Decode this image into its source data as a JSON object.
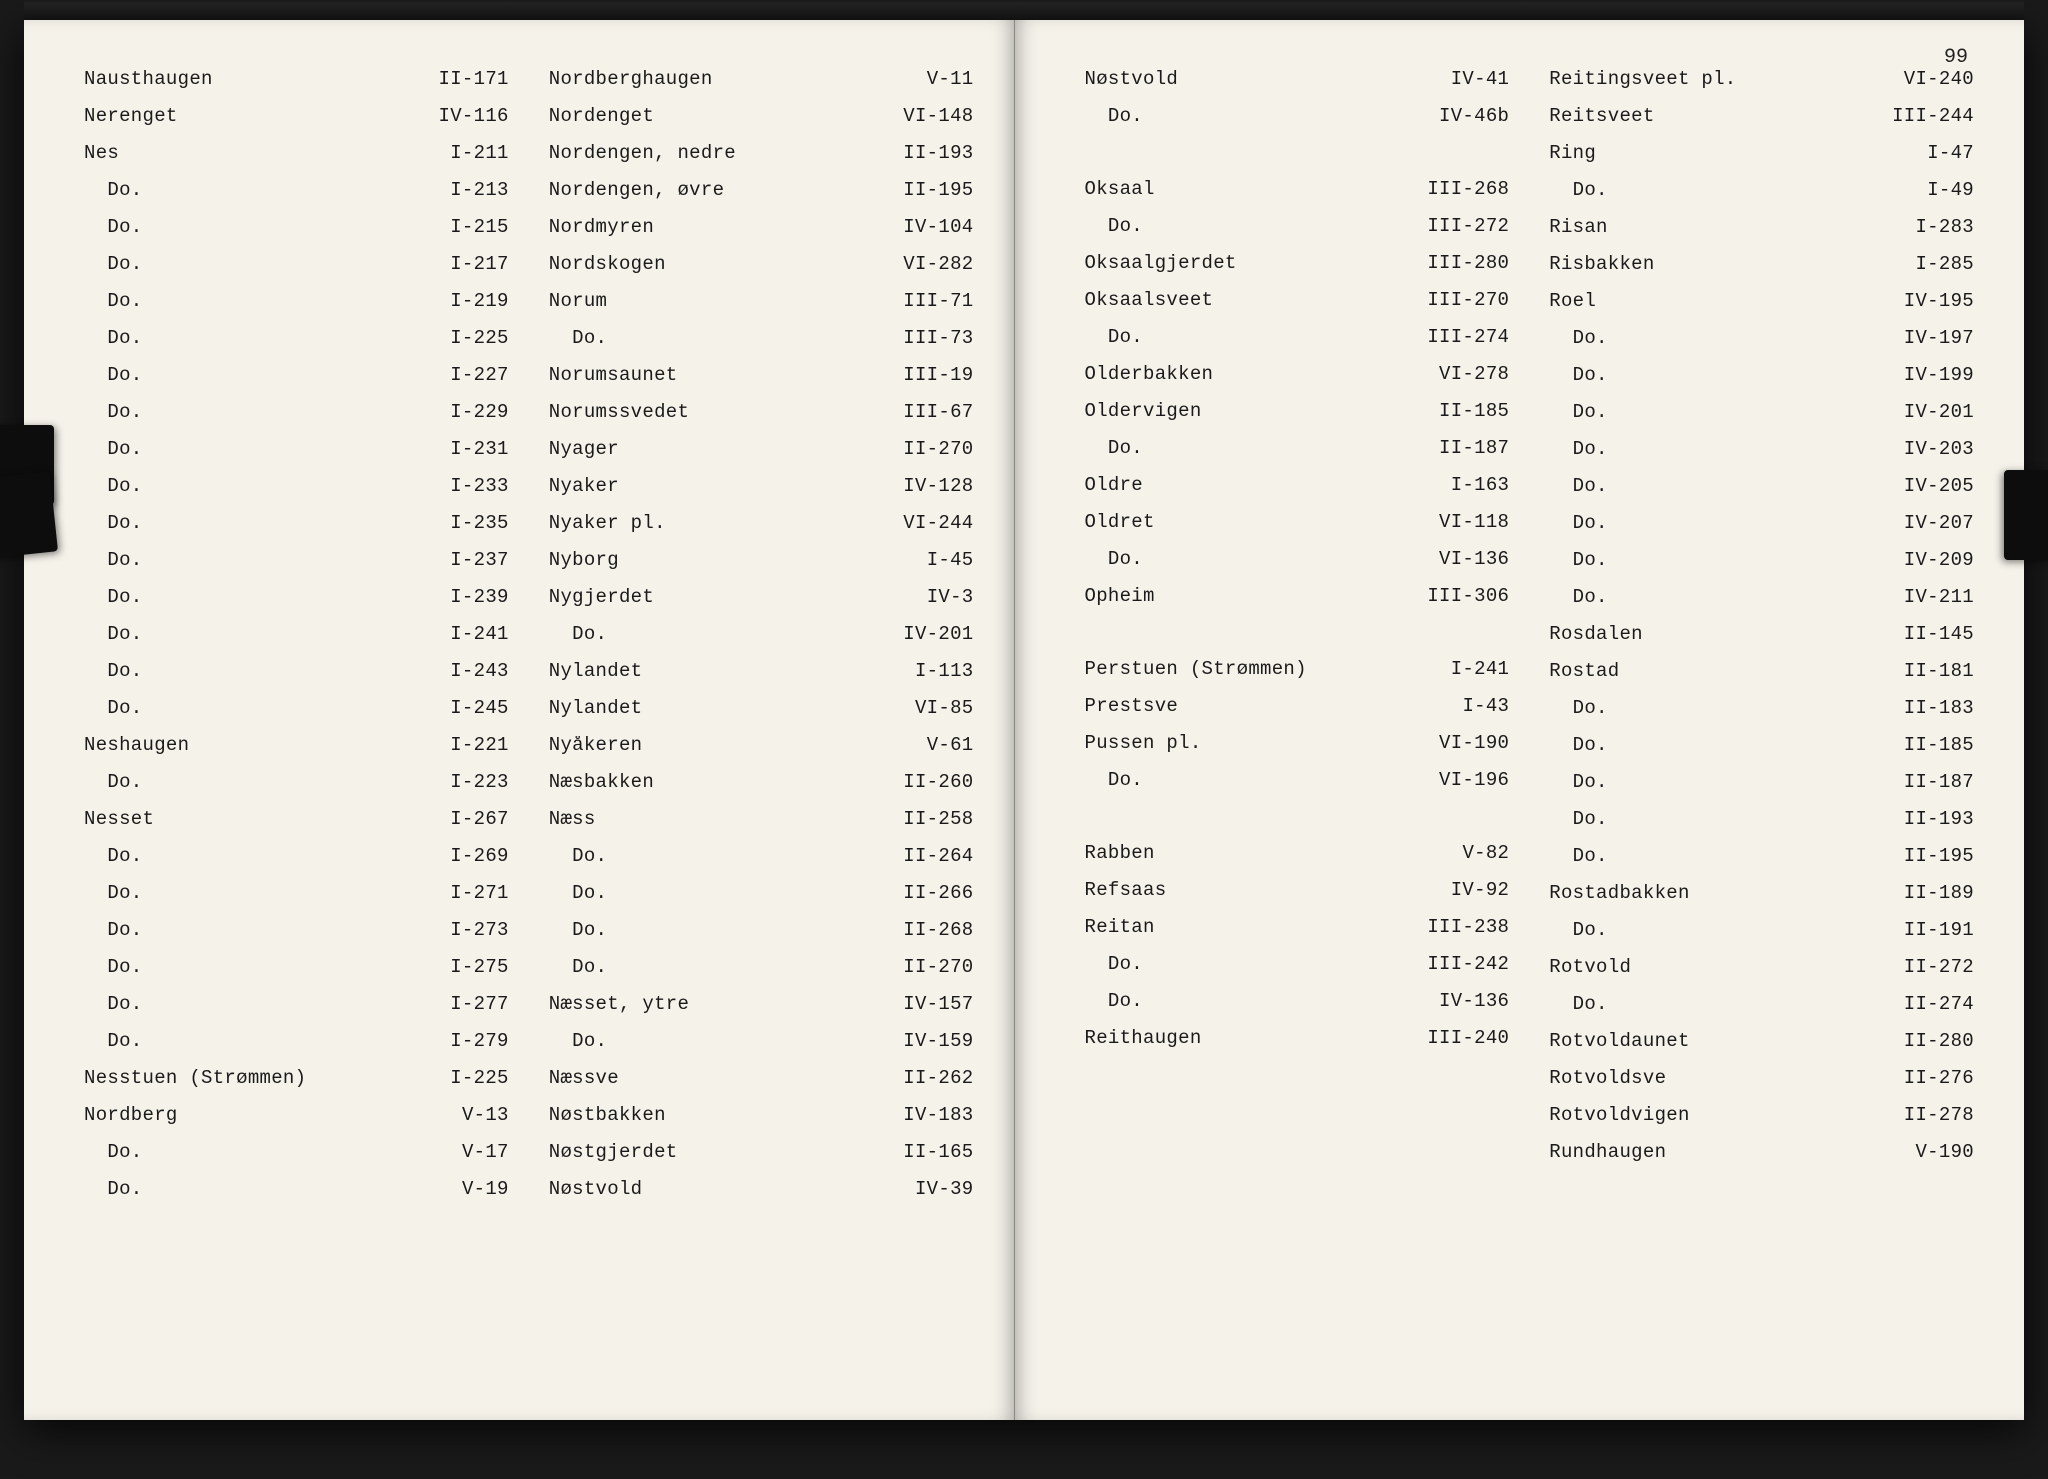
{
  "page_number": "99",
  "colors": {
    "paper_bg": "#f5f2ea",
    "text": "#1a1a1a",
    "frame_bg": "#1a1a1a"
  },
  "typography": {
    "font_family": "Courier New",
    "font_size_pt": 14
  },
  "left_page": {
    "col1": [
      {
        "name": "Nausthaugen",
        "ref": "II-171"
      },
      {
        "name": "Nerenget",
        "ref": "IV-116"
      },
      {
        "name": "Nes",
        "ref": "I-211"
      },
      {
        "name": "  Do.",
        "ref": "I-213"
      },
      {
        "name": "  Do.",
        "ref": "I-215"
      },
      {
        "name": "  Do.",
        "ref": "I-217"
      },
      {
        "name": "  Do.",
        "ref": "I-219"
      },
      {
        "name": "  Do.",
        "ref": "I-225"
      },
      {
        "name": "  Do.",
        "ref": "I-227"
      },
      {
        "name": "  Do.",
        "ref": "I-229"
      },
      {
        "name": "  Do.",
        "ref": "I-231"
      },
      {
        "name": "  Do.",
        "ref": "I-233"
      },
      {
        "name": "  Do.",
        "ref": "I-235"
      },
      {
        "name": "  Do.",
        "ref": "I-237"
      },
      {
        "name": "  Do.",
        "ref": "I-239"
      },
      {
        "name": "  Do.",
        "ref": "I-241"
      },
      {
        "name": "  Do.",
        "ref": "I-243"
      },
      {
        "name": "  Do.",
        "ref": "I-245"
      },
      {
        "name": "Neshaugen",
        "ref": "I-221"
      },
      {
        "name": "  Do.",
        "ref": "I-223"
      },
      {
        "name": "Nesset",
        "ref": "I-267"
      },
      {
        "name": "  Do.",
        "ref": "I-269"
      },
      {
        "name": "  Do.",
        "ref": "I-271"
      },
      {
        "name": "  Do.",
        "ref": "I-273"
      },
      {
        "name": "  Do.",
        "ref": "I-275"
      },
      {
        "name": "  Do.",
        "ref": "I-277"
      },
      {
        "name": "  Do.",
        "ref": "I-279"
      },
      {
        "name": "Nesstuen (Strømmen)",
        "ref": "I-225"
      },
      {
        "name": "Nordberg",
        "ref": "V-13"
      },
      {
        "name": "  Do.",
        "ref": "V-17"
      },
      {
        "name": "  Do.",
        "ref": "V-19"
      }
    ],
    "col2": [
      {
        "name": "Nordberghaugen",
        "ref": "V-11"
      },
      {
        "name": "Nordenget",
        "ref": "VI-148"
      },
      {
        "name": "Nordengen, nedre",
        "ref": "II-193"
      },
      {
        "name": "Nordengen, øvre",
        "ref": "II-195"
      },
      {
        "name": "Nordmyren",
        "ref": "IV-104"
      },
      {
        "name": "Nordskogen",
        "ref": "VI-282"
      },
      {
        "name": "Norum",
        "ref": "III-71"
      },
      {
        "name": "  Do.",
        "ref": "III-73"
      },
      {
        "name": "Norumsaunet",
        "ref": "III-19"
      },
      {
        "name": "Norumssvedet",
        "ref": "III-67"
      },
      {
        "name": "Nyager",
        "ref": "II-270"
      },
      {
        "name": "Nyaker",
        "ref": "IV-128"
      },
      {
        "name": "Nyaker pl.",
        "ref": "VI-244"
      },
      {
        "name": "Nyborg",
        "ref": "I-45"
      },
      {
        "name": "Nygjerdet",
        "ref": "IV-3"
      },
      {
        "name": "  Do.",
        "ref": "IV-201"
      },
      {
        "name": "Nylandet",
        "ref": "I-113"
      },
      {
        "name": "Nylandet",
        "ref": "VI-85"
      },
      {
        "name": "Nyåkeren",
        "ref": "V-61"
      },
      {
        "name": "Næsbakken",
        "ref": "II-260"
      },
      {
        "name": "Næss",
        "ref": "II-258"
      },
      {
        "name": "  Do.",
        "ref": "II-264"
      },
      {
        "name": "  Do.",
        "ref": "II-266"
      },
      {
        "name": "  Do.",
        "ref": "II-268"
      },
      {
        "name": "  Do.",
        "ref": "II-270"
      },
      {
        "name": "Næsset, ytre",
        "ref": "IV-157"
      },
      {
        "name": "  Do.",
        "ref": "IV-159"
      },
      {
        "name": "Næssve",
        "ref": "II-262"
      },
      {
        "name": "Nøstbakken",
        "ref": "IV-183"
      },
      {
        "name": "Nøstgjerdet",
        "ref": "II-165"
      },
      {
        "name": "Nøstvold",
        "ref": "IV-39"
      }
    ]
  },
  "right_page": {
    "col1": [
      {
        "name": "Nøstvold",
        "ref": "IV-41"
      },
      {
        "name": "  Do.",
        "ref": "IV-46b"
      },
      {
        "name": "",
        "ref": ""
      },
      {
        "name": "",
        "ref": ""
      },
      {
        "name": "Oksaal",
        "ref": "III-268"
      },
      {
        "name": "  Do.",
        "ref": "III-272"
      },
      {
        "name": "Oksaalgjerdet",
        "ref": "III-280"
      },
      {
        "name": "Oksaalsveet",
        "ref": "III-270"
      },
      {
        "name": "  Do.",
        "ref": "III-274"
      },
      {
        "name": "Olderbakken",
        "ref": "VI-278"
      },
      {
        "name": "Oldervigen",
        "ref": "II-185"
      },
      {
        "name": "  Do.",
        "ref": "II-187"
      },
      {
        "name": "Oldre",
        "ref": "I-163"
      },
      {
        "name": "Oldret",
        "ref": "VI-118"
      },
      {
        "name": "  Do.",
        "ref": "VI-136"
      },
      {
        "name": "Opheim",
        "ref": "III-306"
      },
      {
        "name": "",
        "ref": ""
      },
      {
        "name": "",
        "ref": ""
      },
      {
        "name": "Perstuen (Strømmen)",
        "ref": "I-241"
      },
      {
        "name": "Prestsve",
        "ref": "I-43"
      },
      {
        "name": "Pussen pl.",
        "ref": "VI-190"
      },
      {
        "name": "  Do.",
        "ref": "VI-196"
      },
      {
        "name": "",
        "ref": ""
      },
      {
        "name": "",
        "ref": ""
      },
      {
        "name": "Rabben",
        "ref": "V-82"
      },
      {
        "name": "Refsaas",
        "ref": "IV-92"
      },
      {
        "name": "Reitan",
        "ref": "III-238"
      },
      {
        "name": "  Do.",
        "ref": "III-242"
      },
      {
        "name": "  Do.",
        "ref": "IV-136"
      },
      {
        "name": "Reithaugen",
        "ref": "III-240"
      }
    ],
    "col2": [
      {
        "name": "Reitingsveet pl.",
        "ref": "VI-240"
      },
      {
        "name": "Reitsveet",
        "ref": "III-244"
      },
      {
        "name": "Ring",
        "ref": "I-47"
      },
      {
        "name": "  Do.",
        "ref": "I-49"
      },
      {
        "name": "Risan",
        "ref": "I-283"
      },
      {
        "name": "Risbakken",
        "ref": "I-285"
      },
      {
        "name": "Roel",
        "ref": "IV-195"
      },
      {
        "name": "  Do.",
        "ref": "IV-197"
      },
      {
        "name": "  Do.",
        "ref": "IV-199"
      },
      {
        "name": "  Do.",
        "ref": "IV-201"
      },
      {
        "name": "  Do.",
        "ref": "IV-203"
      },
      {
        "name": "  Do.",
        "ref": "IV-205"
      },
      {
        "name": "  Do.",
        "ref": "IV-207"
      },
      {
        "name": "  Do.",
        "ref": "IV-209"
      },
      {
        "name": "  Do.",
        "ref": "IV-211"
      },
      {
        "name": "Rosdalen",
        "ref": "II-145"
      },
      {
        "name": "Rostad",
        "ref": "II-181"
      },
      {
        "name": "  Do.",
        "ref": "II-183"
      },
      {
        "name": "  Do.",
        "ref": "II-185"
      },
      {
        "name": "  Do.",
        "ref": "II-187"
      },
      {
        "name": "  Do.",
        "ref": "II-193"
      },
      {
        "name": "  Do.",
        "ref": "II-195"
      },
      {
        "name": "Rostadbakken",
        "ref": "II-189"
      },
      {
        "name": "  Do.",
        "ref": "II-191"
      },
      {
        "name": "Rotvold",
        "ref": "II-272"
      },
      {
        "name": "  Do.",
        "ref": "II-274"
      },
      {
        "name": "Rotvoldaunet",
        "ref": "II-280"
      },
      {
        "name": "Rotvoldsve",
        "ref": "II-276"
      },
      {
        "name": "Rotvoldvigen",
        "ref": "II-278"
      },
      {
        "name": "Rundhaugen",
        "ref": "V-190"
      }
    ]
  }
}
